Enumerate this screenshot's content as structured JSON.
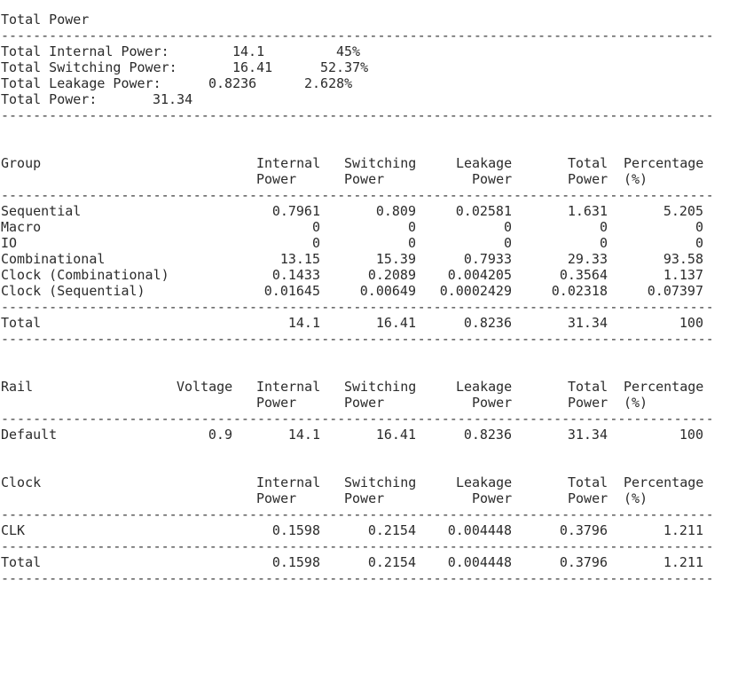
{
  "summary": {
    "title": "Total Power",
    "internal": {
      "label": "Total Internal Power:",
      "value": "14.1",
      "pct": "45%"
    },
    "switching": {
      "label": "Total Switching Power:",
      "value": "16.41",
      "pct": "52.37%"
    },
    "leakage": {
      "label": "Total Leakage Power:",
      "value": "0.8236",
      "pct": "2.628%"
    },
    "total": {
      "label": "Total Power:",
      "value": "31.34"
    }
  },
  "separator": "-----------------------------------------------------------------------------------------------------",
  "group_table": {
    "headers": {
      "name": "Group",
      "internal": [
        "Internal",
        "Power"
      ],
      "switching": [
        "Switching",
        "Power"
      ],
      "leakage": [
        "Leakage",
        "Power"
      ],
      "total": [
        "Total",
        "Power"
      ],
      "percentage": [
        "Percentage",
        "(%)"
      ]
    },
    "rows": [
      {
        "name": "Sequential",
        "internal": "0.7961",
        "switching": "0.809",
        "leakage": "0.02581",
        "total": "1.631",
        "percentage": "5.205"
      },
      {
        "name": "Macro",
        "internal": "0",
        "switching": "0",
        "leakage": "0",
        "total": "0",
        "percentage": "0"
      },
      {
        "name": "IO",
        "internal": "0",
        "switching": "0",
        "leakage": "0",
        "total": "0",
        "percentage": "0"
      },
      {
        "name": "Combinational",
        "internal": "13.15",
        "switching": "15.39",
        "leakage": "0.7933",
        "total": "29.33",
        "percentage": "93.58"
      },
      {
        "name": "Clock (Combinational)",
        "internal": "0.1433",
        "switching": "0.2089",
        "leakage": "0.004205",
        "total": "0.3564",
        "percentage": "1.137"
      },
      {
        "name": "Clock (Sequential)",
        "internal": "0.01645",
        "switching": "0.00649",
        "leakage": "0.0002429",
        "total": "0.02318",
        "percentage": "0.07397"
      }
    ],
    "total": {
      "name": "Total",
      "internal": "14.1",
      "switching": "16.41",
      "leakage": "0.8236",
      "total": "31.34",
      "percentage": "100"
    }
  },
  "rail_table": {
    "headers": {
      "name": "Rail",
      "voltage": "Voltage",
      "internal": [
        "Internal",
        "Power"
      ],
      "switching": [
        "Switching",
        "Power"
      ],
      "leakage": [
        "Leakage",
        "Power"
      ],
      "total": [
        "Total",
        "Power"
      ],
      "percentage": [
        "Percentage",
        "(%)"
      ]
    },
    "rows": [
      {
        "name": "Default",
        "voltage": "0.9",
        "internal": "14.1",
        "switching": "16.41",
        "leakage": "0.8236",
        "total": "31.34",
        "percentage": "100"
      }
    ]
  },
  "clock_table": {
    "headers": {
      "name": "Clock",
      "internal": [
        "Internal",
        "Power"
      ],
      "switching": [
        "Switching",
        "Power"
      ],
      "leakage": [
        "Leakage",
        "Power"
      ],
      "total": [
        "Total",
        "Power"
      ],
      "percentage": [
        "Percentage",
        "(%)"
      ]
    },
    "rows": [
      {
        "name": "CLK",
        "internal": "0.1598",
        "switching": "0.2154",
        "leakage": "0.004448",
        "total": "0.3796",
        "percentage": "1.211"
      }
    ],
    "total": {
      "name": "Total",
      "internal": "0.1598",
      "switching": "0.2154",
      "leakage": "0.004448",
      "total": "0.3796",
      "percentage": "1.211"
    }
  }
}
